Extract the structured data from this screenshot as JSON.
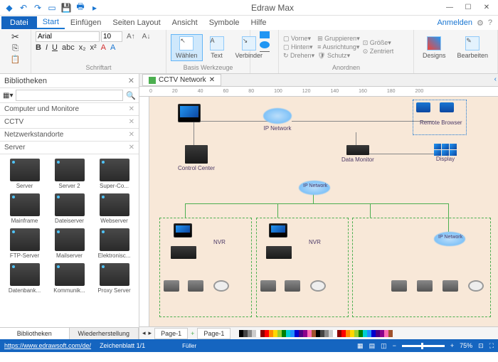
{
  "app": {
    "title": "Edraw Max"
  },
  "menu": {
    "datei": "Datei",
    "items": [
      "Start",
      "Einfügen",
      "Seiten Layout",
      "Ansicht",
      "Symbole",
      "Hilfe"
    ],
    "anmelden": "Anmelden"
  },
  "ribbon": {
    "font": {
      "name": "Arial",
      "size": "10"
    },
    "schriftart": "Schriftart",
    "basis": "Basis Werkzeuge",
    "wahlen": "Wählen",
    "text": "Text",
    "verbinder": "Verbinder",
    "anordnen": "Anordnen",
    "vorne": "Vorne",
    "hinten": "Hinten",
    "drehen": "Drehen",
    "gruppieren": "Gruppieren",
    "ausrichtung": "Ausrichtung",
    "schutz": "Schutz",
    "grosse": "Größe",
    "zentriert": "Zentriert",
    "designs": "Designs",
    "bearbeiten": "Bearbeiten"
  },
  "sidebar": {
    "title": "Bibliotheken",
    "sections": [
      "Computer und Monitore",
      "CCTV",
      "Netzwerkstandorte",
      "Server"
    ],
    "items": [
      "Server",
      "Server 2",
      "Super-Co...",
      "Mainframe",
      "Dateiserver",
      "Webserver",
      "FTP-Server",
      "Mailserver",
      "Elektronisc...",
      "Datenbank...",
      "Kommunik...",
      "Proxy Server"
    ],
    "tabs": {
      "bib": "Bibliotheken",
      "wieder": "Wiederherstellung"
    }
  },
  "doc": {
    "tab": "CCTV Network"
  },
  "diagram": {
    "control_center": "Control Center",
    "ip_network": "IP Network",
    "data_monitor": "Data Monitor",
    "remote_browser": "Remote Browser",
    "display": "Display",
    "nvr": "NVR"
  },
  "pages": {
    "p1": "Page-1",
    "p2": "Page-1",
    "fuller": "Füller"
  },
  "status": {
    "url": "https://www.edrawsoft.com/de/",
    "sheet": "Zeichenblatt 1/1",
    "zoom": "75%"
  },
  "colors": {
    "canvas": "#f8e8d8",
    "accent": "#1565c0",
    "cloud": "#64b5f6"
  },
  "palette": [
    "#000",
    "#444",
    "#888",
    "#ccc",
    "#fff",
    "#8b0000",
    "#ff0000",
    "#ff8c00",
    "#ffd700",
    "#9acd32",
    "#008000",
    "#00ced1",
    "#1e90ff",
    "#0000cd",
    "#4b0082",
    "#8b008b",
    "#ff69b4",
    "#a0522d"
  ]
}
